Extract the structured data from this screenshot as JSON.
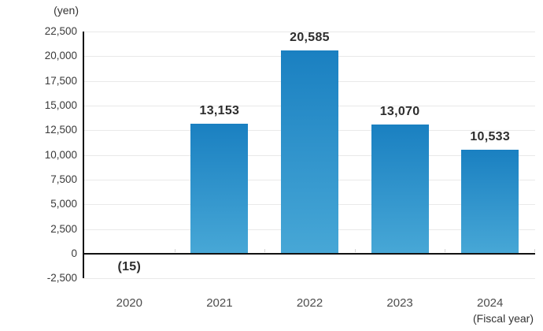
{
  "chart_data": {
    "type": "bar",
    "categories": [
      "2020",
      "2021",
      "2022",
      "2023",
      "2024"
    ],
    "values": [
      -15,
      13153,
      20585,
      13070,
      10533
    ],
    "value_labels": [
      "(15)",
      "13,153",
      "20,585",
      "13,070",
      "10,533"
    ],
    "title": "",
    "xlabel": "(Fiscal year)",
    "ylabel": "(yen)",
    "ylim": [
      -2500,
      22500
    ],
    "ytick_step": 2500,
    "grid": true,
    "legend": "none",
    "bar_color_top": "#1a80c1",
    "bar_color_bottom": "#47a7d6",
    "axis_color": "#121212",
    "gridline_color": "#e9e9e9",
    "value_label_color": "#2d2d2d",
    "ytick_label_color": "#3a3a3a",
    "xtick_label_color": "#4d4d4d",
    "background_color": "#ffffff"
  }
}
